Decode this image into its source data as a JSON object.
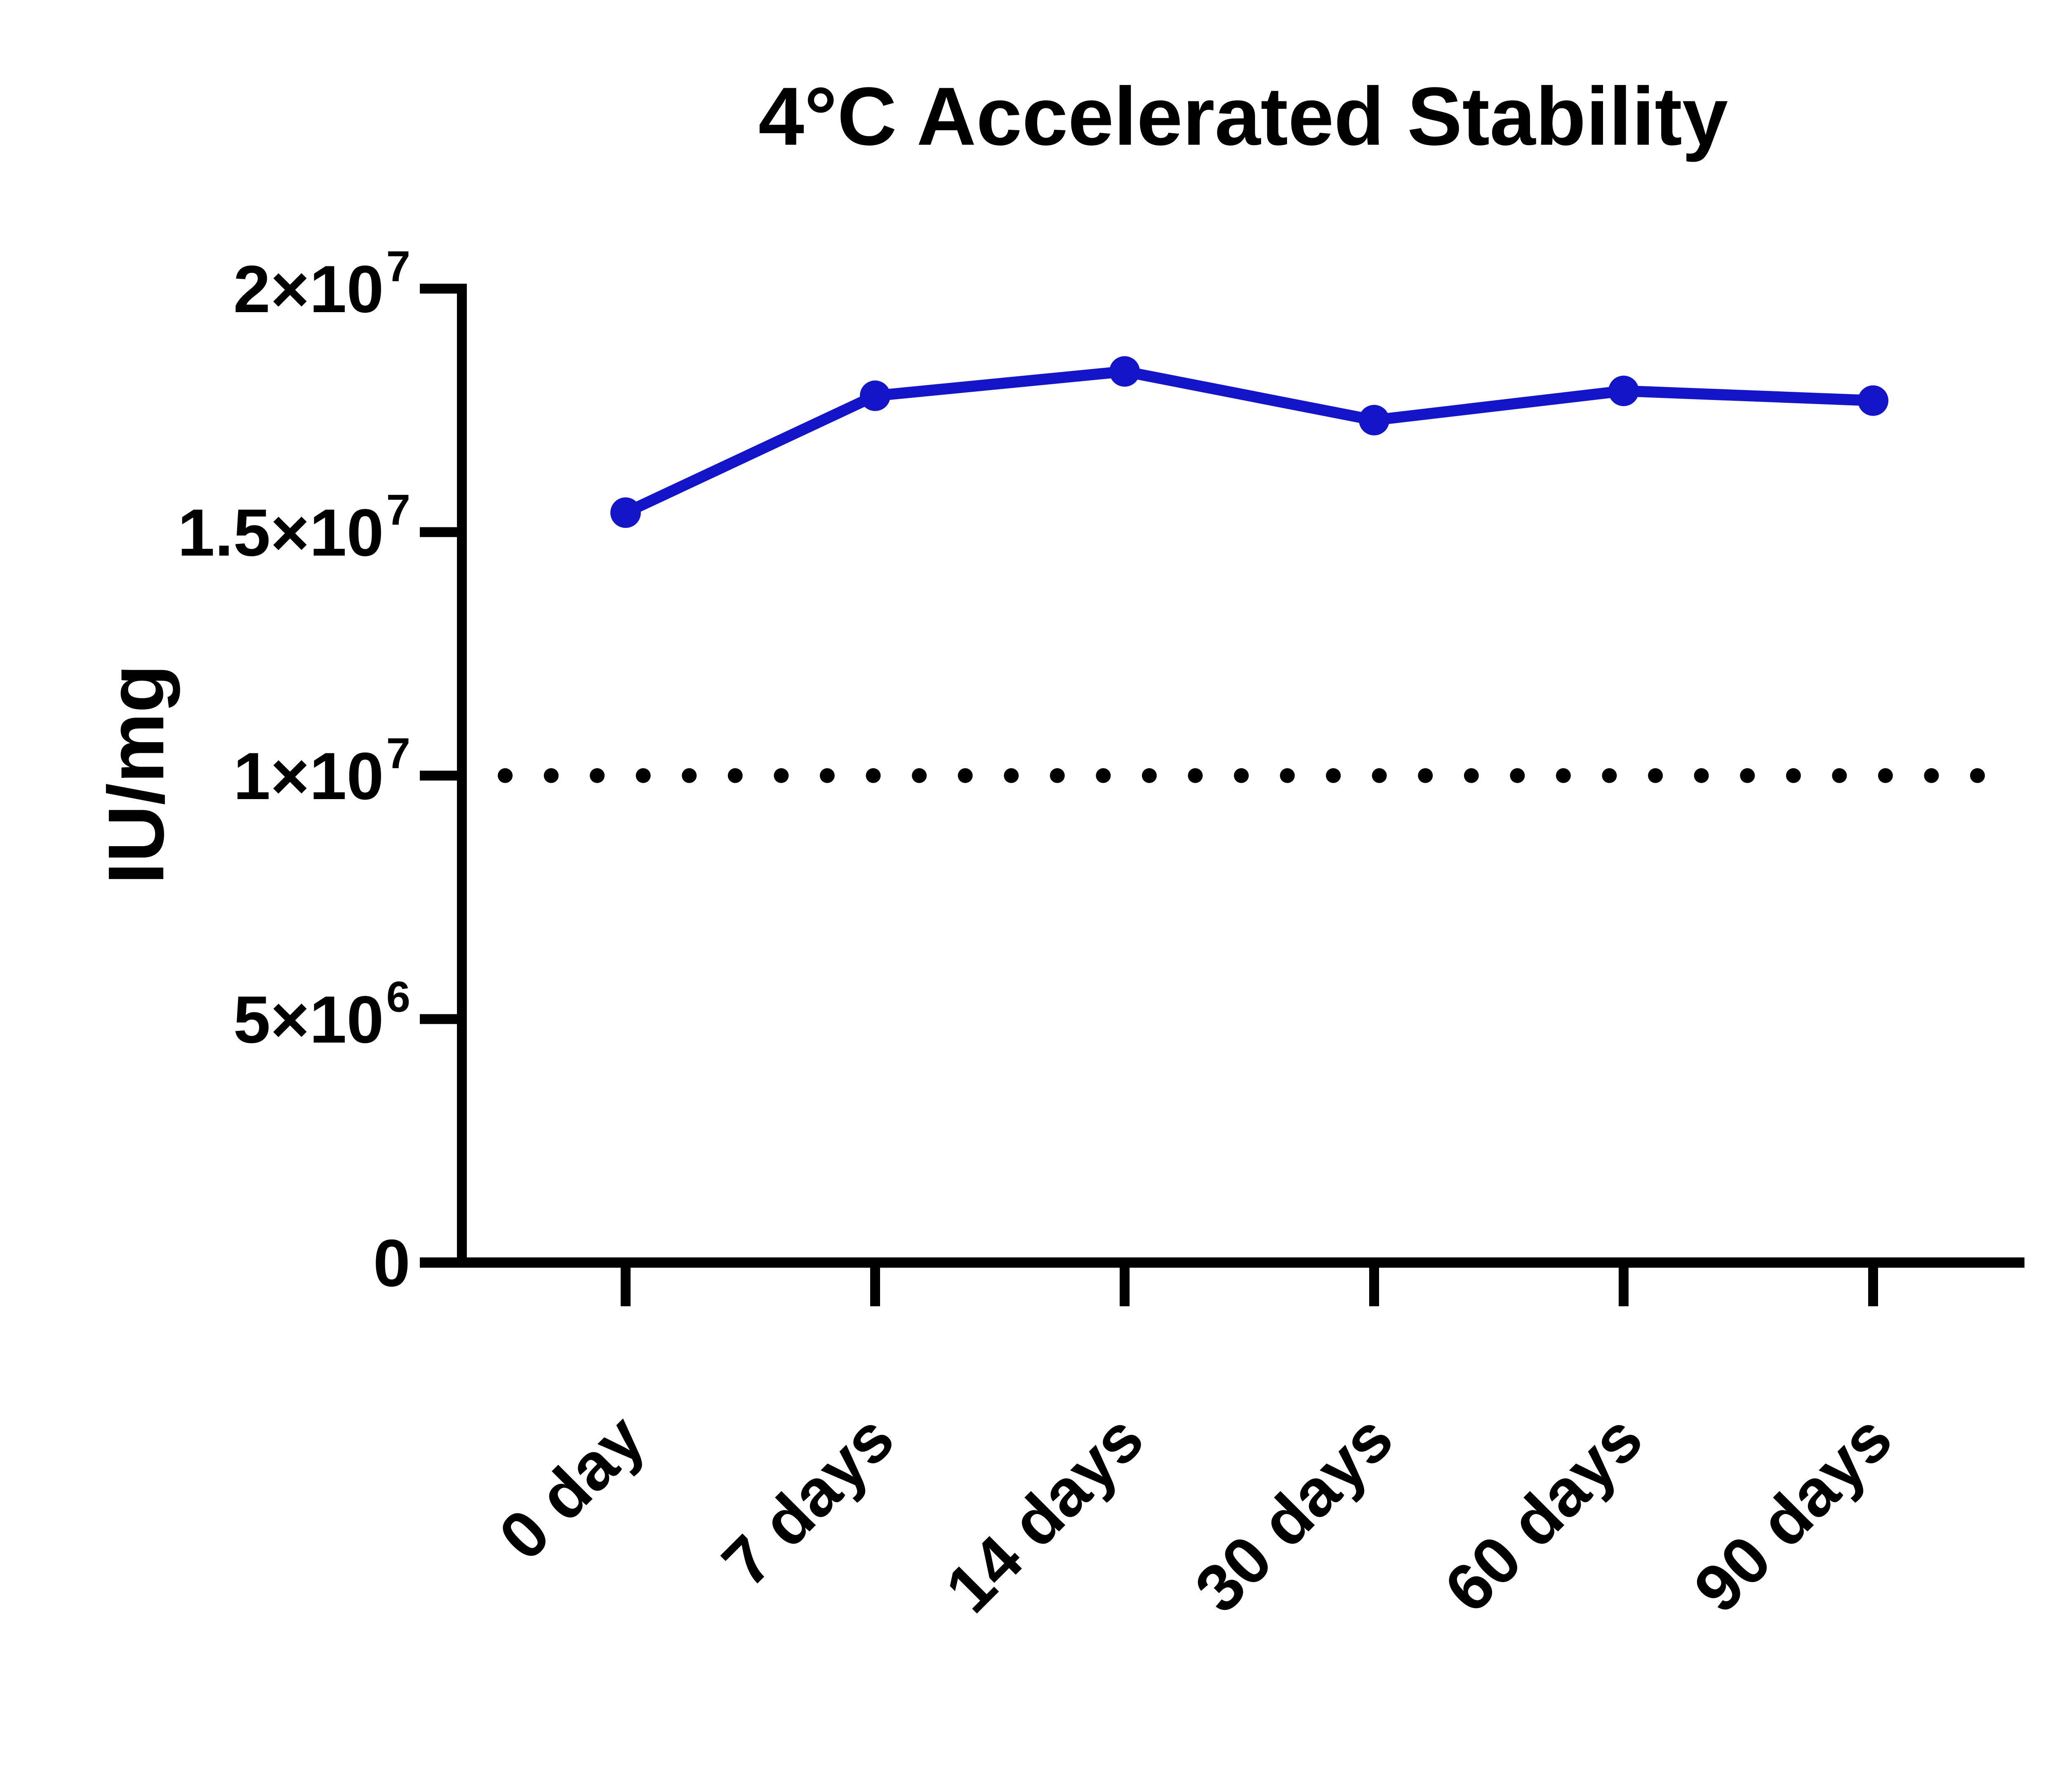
{
  "chart_data": {
    "type": "line",
    "title": "4°C Accelerated Stability",
    "ylabel": "IU/mg",
    "xlabel": "",
    "categories": [
      "0 day",
      "7 days",
      "14 days",
      "30 days",
      "60 days",
      "90 days"
    ],
    "series": [
      {
        "name": "4°C Accelerated Stability",
        "color": "#1414C8",
        "values": [
          15400000,
          17800000,
          18300000,
          17300000,
          17900000,
          17700000
        ]
      }
    ],
    "threshold_line": {
      "value": 10000000,
      "style": "dotted",
      "color": "#000000"
    },
    "ylim": [
      0,
      20000000
    ],
    "yticks": [
      {
        "value": 0,
        "base": "0",
        "exp": ""
      },
      {
        "value": 5000000,
        "base": "5×10",
        "exp": "6"
      },
      {
        "value": 10000000,
        "base": "1×10",
        "exp": "7"
      },
      {
        "value": 15000000,
        "base": "1.5×10",
        "exp": "7"
      },
      {
        "value": 20000000,
        "base": "2×10",
        "exp": "7"
      }
    ],
    "grid": false,
    "legend": "none",
    "x_tick_rotation": -45,
    "axis_color": "#000000",
    "background_color": "#FFFFFF"
  }
}
